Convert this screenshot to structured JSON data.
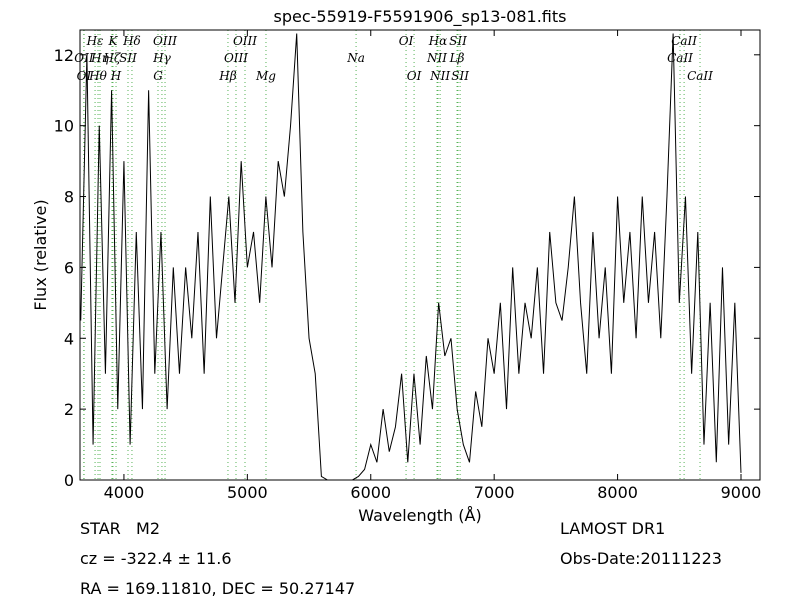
{
  "chart_data": {
    "type": "line",
    "title": "spec-55919-F5591906_sp13-081.fits",
    "x_label": "Wavelength (Å)",
    "y_label": "Flux (relative)",
    "xlim": [
      3644,
      9154
    ],
    "ylim": [
      0,
      12.7
    ],
    "xticks": [
      4000,
      5000,
      6000,
      7000,
      8000,
      9000
    ],
    "yticks": [
      0,
      2,
      4,
      6,
      8,
      10,
      12
    ],
    "grid": false,
    "series": [
      {
        "color": "#000000",
        "x": [
          3650,
          3700,
          3750,
          3800,
          3850,
          3900,
          3950,
          4000,
          4050,
          4100,
          4150,
          4200,
          4250,
          4300,
          4350,
          4400,
          4450,
          4500,
          4550,
          4600,
          4650,
          4700,
          4750,
          4800,
          4850,
          4900,
          4950,
          5000,
          5050,
          5100,
          5150,
          5200,
          5250,
          5300,
          5350,
          5400,
          5450,
          5500,
          5550,
          5600,
          5650,
          5700,
          5750,
          5800,
          5850,
          5900,
          5950,
          6000,
          6050,
          6100,
          6150,
          6200,
          6250,
          6300,
          6350,
          6400,
          6450,
          6500,
          6550,
          6600,
          6650,
          6700,
          6750,
          6800,
          6850,
          6900,
          6950,
          7000,
          7050,
          7100,
          7150,
          7200,
          7250,
          7300,
          7350,
          7400,
          7450,
          7500,
          7550,
          7600,
          7650,
          7700,
          7750,
          7800,
          7850,
          7900,
          7950,
          8000,
          8050,
          8100,
          8150,
          8200,
          8250,
          8300,
          8350,
          8400,
          8450,
          8500,
          8550,
          8600,
          8650,
          8700,
          8750,
          8800,
          8850,
          8900,
          8950,
          9000
        ],
        "values": [
          4.5,
          12,
          1,
          10,
          3,
          11,
          2,
          9,
          1,
          7,
          2,
          11,
          3,
          7,
          2,
          6,
          3,
          6,
          4,
          7,
          3,
          8,
          4,
          6,
          8,
          5,
          9,
          6,
          7,
          5,
          8,
          6,
          9,
          8,
          10,
          12.6,
          7,
          4,
          3,
          0.1,
          0,
          0,
          0,
          0,
          0,
          0.1,
          0.3,
          1,
          0.5,
          2,
          0.8,
          1.5,
          3,
          0.5,
          3,
          1,
          3.5,
          2,
          5,
          3.5,
          4,
          2,
          1,
          0.5,
          2.5,
          1.5,
          4,
          3,
          5,
          2,
          6,
          3,
          5,
          4,
          6,
          3,
          7,
          5,
          4.5,
          6,
          8,
          5,
          3,
          7,
          4,
          6,
          3,
          8,
          5,
          7,
          4,
          8,
          5,
          7,
          4,
          8,
          12.6,
          5,
          8,
          3,
          7,
          1,
          5,
          0.5,
          6,
          1,
          5,
          0.2
        ]
      }
    ],
    "line_labels": [
      [
        {
          "label": "Hε",
          "x": 3766
        },
        {
          "label": "K",
          "x": 3911
        },
        {
          "label": "Hδ",
          "x": 4065
        },
        {
          "label": "OIII",
          "x": 4333
        },
        {
          "label": "OIII",
          "x": 4981
        },
        {
          "label": "OI",
          "x": 6286
        },
        {
          "label": "Hα",
          "x": 6545
        },
        {
          "label": "SII",
          "x": 6707
        },
        {
          "label": "CaII",
          "x": 8539
        }
      ],
      [
        {
          "label": "OII",
          "x": 3676
        },
        {
          "label": "Hη",
          "x": 3806
        },
        {
          "label": "Hζ",
          "x": 3903
        },
        {
          "label": "SII",
          "x": 4033
        },
        {
          "label": "Hγ",
          "x": 4308
        },
        {
          "label": "OIII",
          "x": 4908
        },
        {
          "label": "Na",
          "x": 5881
        },
        {
          "label": "NII",
          "x": 6537
        },
        {
          "label": "Lβ",
          "x": 6699
        },
        {
          "label": "CaII",
          "x": 8506
        }
      ],
      [
        {
          "label": "OI",
          "x": 3676
        },
        {
          "label": "Hθ",
          "x": 3790
        },
        {
          "label": "H",
          "x": 3936
        },
        {
          "label": "G",
          "x": 4276
        },
        {
          "label": "Hβ",
          "x": 4843
        },
        {
          "label": "Mg",
          "x": 5151
        },
        {
          "label": "OI",
          "x": 6351
        },
        {
          "label": "NII",
          "x": 6562
        },
        {
          "label": "SII",
          "x": 6724
        },
        {
          "label": "CaII",
          "x": 8668
        }
      ]
    ],
    "annotations": [
      "STAR   M2",
      "LAMOST DR1",
      "cz = -322.4 ± 11.6",
      "Obs-Date:20111223",
      "RA = 169.11810, DEC = 50.27147"
    ]
  }
}
